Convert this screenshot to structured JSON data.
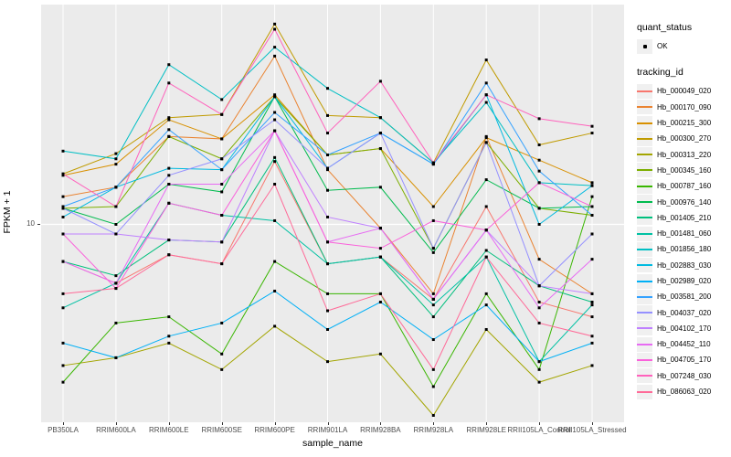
{
  "figure": {
    "background": "#FFFFFF",
    "panel_background": "#EBEBEB",
    "gridline_color": "#FFFFFF",
    "axis_text_color": "#4D4D4D"
  },
  "axes": {
    "x_title": "sample_name",
    "y_title": "FPKM + 1",
    "y_scale": "log10",
    "y_tick_labels": [
      "10"
    ]
  },
  "legend": {
    "quant_status": {
      "title": "quant_status",
      "items": [
        {
          "label": "OK",
          "marker": "black-point"
        }
      ]
    },
    "tracking_id": {
      "title": "tracking_id"
    }
  },
  "chart_data": {
    "type": "line",
    "title": "",
    "xlabel": "sample_name",
    "ylabel": "FPKM + 1",
    "y_scale": "log10",
    "ylim": [
      3.4,
      31
    ],
    "y_major_breaks": [
      10
    ],
    "grid": true,
    "legend_position": "right",
    "point_marker": "small black point (quant_status = OK)",
    "categories": [
      "PB350LA",
      "RRIM600LA",
      "RRIM600LE",
      "RRIM600SE",
      "RRIM600PE",
      "RRIM901LA",
      "RRIM928BA",
      "RRIM928LA",
      "RRIM928LE",
      "RRII105LA_Control",
      "RRII105LA_Stressed"
    ],
    "series": [
      {
        "name": "Hb_000049_020",
        "color": "#F8766D",
        "values": [
          8.2,
          7.3,
          8.5,
          8.1,
          14.0,
          8.1,
          8.4,
          6.7,
          11.0,
          6.6,
          6.1
        ]
      },
      {
        "name": "Hb_000170_090",
        "color": "#EA8331",
        "values": [
          11.6,
          12.2,
          16.0,
          15.8,
          24.6,
          13.4,
          9.8,
          6.9,
          16.0,
          8.3,
          6.9
        ]
      },
      {
        "name": "Hb_000215_300",
        "color": "#D89000",
        "values": [
          13.0,
          13.8,
          17.5,
          15.8,
          20.0,
          14.5,
          15.0,
          11.0,
          15.9,
          14.1,
          12.5
        ]
      },
      {
        "name": "Hb_000300_270",
        "color": "#C09B00",
        "values": [
          13.1,
          14.6,
          17.7,
          18.0,
          29.2,
          17.9,
          17.7,
          13.9,
          24.1,
          15.3,
          16.3
        ]
      },
      {
        "name": "Hb_000313_220",
        "color": "#A3A500",
        "values": [
          4.7,
          4.9,
          5.3,
          4.6,
          5.8,
          4.8,
          5.0,
          3.6,
          5.7,
          4.3,
          4.7
        ]
      },
      {
        "name": "Hb_000345_160",
        "color": "#7CAE00",
        "values": [
          10.9,
          11.0,
          16.0,
          14.2,
          19.8,
          14.5,
          15.0,
          8.8,
          15.5,
          10.9,
          10.5
        ]
      },
      {
        "name": "Hb_000787_160",
        "color": "#39B600",
        "values": [
          4.3,
          5.9,
          6.1,
          5.0,
          8.2,
          6.9,
          6.9,
          4.2,
          6.9,
          4.6,
          11.6
        ]
      },
      {
        "name": "Hb_000976_140",
        "color": "#00BB4E",
        "values": [
          10.9,
          10.0,
          12.4,
          11.9,
          19.8,
          12.0,
          12.2,
          8.6,
          12.7,
          10.9,
          11.0
        ]
      },
      {
        "name": "Hb_001405_210",
        "color": "#00BF7D",
        "values": [
          8.2,
          7.6,
          9.2,
          9.1,
          14.3,
          8.1,
          8.4,
          6.1,
          8.7,
          7.2,
          6.6
        ]
      },
      {
        "name": "Hb_001481_060",
        "color": "#00C1A3",
        "values": [
          6.4,
          7.3,
          11.2,
          10.5,
          10.2,
          8.1,
          8.4,
          6.5,
          8.4,
          4.8,
          6.5
        ]
      },
      {
        "name": "Hb_001856_180",
        "color": "#00BFC4",
        "values": [
          14.8,
          14.2,
          23.5,
          19.5,
          25.8,
          20.7,
          17.7,
          13.9,
          19.2,
          12.5,
          12.3
        ]
      },
      {
        "name": "Hb_002883_030",
        "color": "#00BAE0",
        "values": [
          10.4,
          12.2,
          13.5,
          13.4,
          19.8,
          13.5,
          16.3,
          13.8,
          20.0,
          10.0,
          12.3
        ]
      },
      {
        "name": "Hb_002989_020",
        "color": "#00B0F6",
        "values": [
          5.3,
          4.9,
          5.5,
          5.9,
          7.0,
          5.7,
          6.6,
          5.4,
          6.5,
          4.8,
          5.3
        ]
      },
      {
        "name": "Hb_003581_200",
        "color": "#35A2FF",
        "values": [
          11.0,
          12.2,
          16.6,
          13.4,
          18.2,
          14.5,
          16.3,
          13.8,
          21.3,
          13.3,
          10.5
        ]
      },
      {
        "name": "Hb_004037_020",
        "color": "#9590FF",
        "values": [
          10.9,
          9.5,
          13.0,
          14.2,
          17.5,
          13.5,
          16.3,
          8.8,
          15.5,
          7.2,
          9.5
        ]
      },
      {
        "name": "Hb_004102_170",
        "color": "#BF80FF",
        "values": [
          9.5,
          9.5,
          9.2,
          9.1,
          16.5,
          10.4,
          9.8,
          6.7,
          9.7,
          7.2,
          6.9
        ]
      },
      {
        "name": "Hb_004452_110",
        "color": "#E76BF3",
        "values": [
          8.2,
          7.3,
          12.4,
          12.4,
          16.5,
          9.1,
          9.8,
          6.7,
          9.7,
          6.4,
          8.3
        ]
      },
      {
        "name": "Hb_004705_170",
        "color": "#FA62DB",
        "values": [
          9.5,
          7.1,
          11.2,
          10.5,
          16.5,
          9.1,
          8.8,
          10.2,
          9.7,
          12.5,
          11.0
        ]
      },
      {
        "name": "Hb_007248_030",
        "color": "#FF62BC",
        "values": [
          13.1,
          11.0,
          21.3,
          18.0,
          28.4,
          16.3,
          21.5,
          13.9,
          20.0,
          17.6,
          16.9
        ]
      },
      {
        "name": "Hb_086063_020",
        "color": "#FF6A98",
        "values": [
          6.9,
          7.1,
          8.5,
          8.1,
          12.4,
          6.3,
          6.9,
          4.6,
          8.4,
          5.9,
          5.5
        ]
      }
    ]
  }
}
